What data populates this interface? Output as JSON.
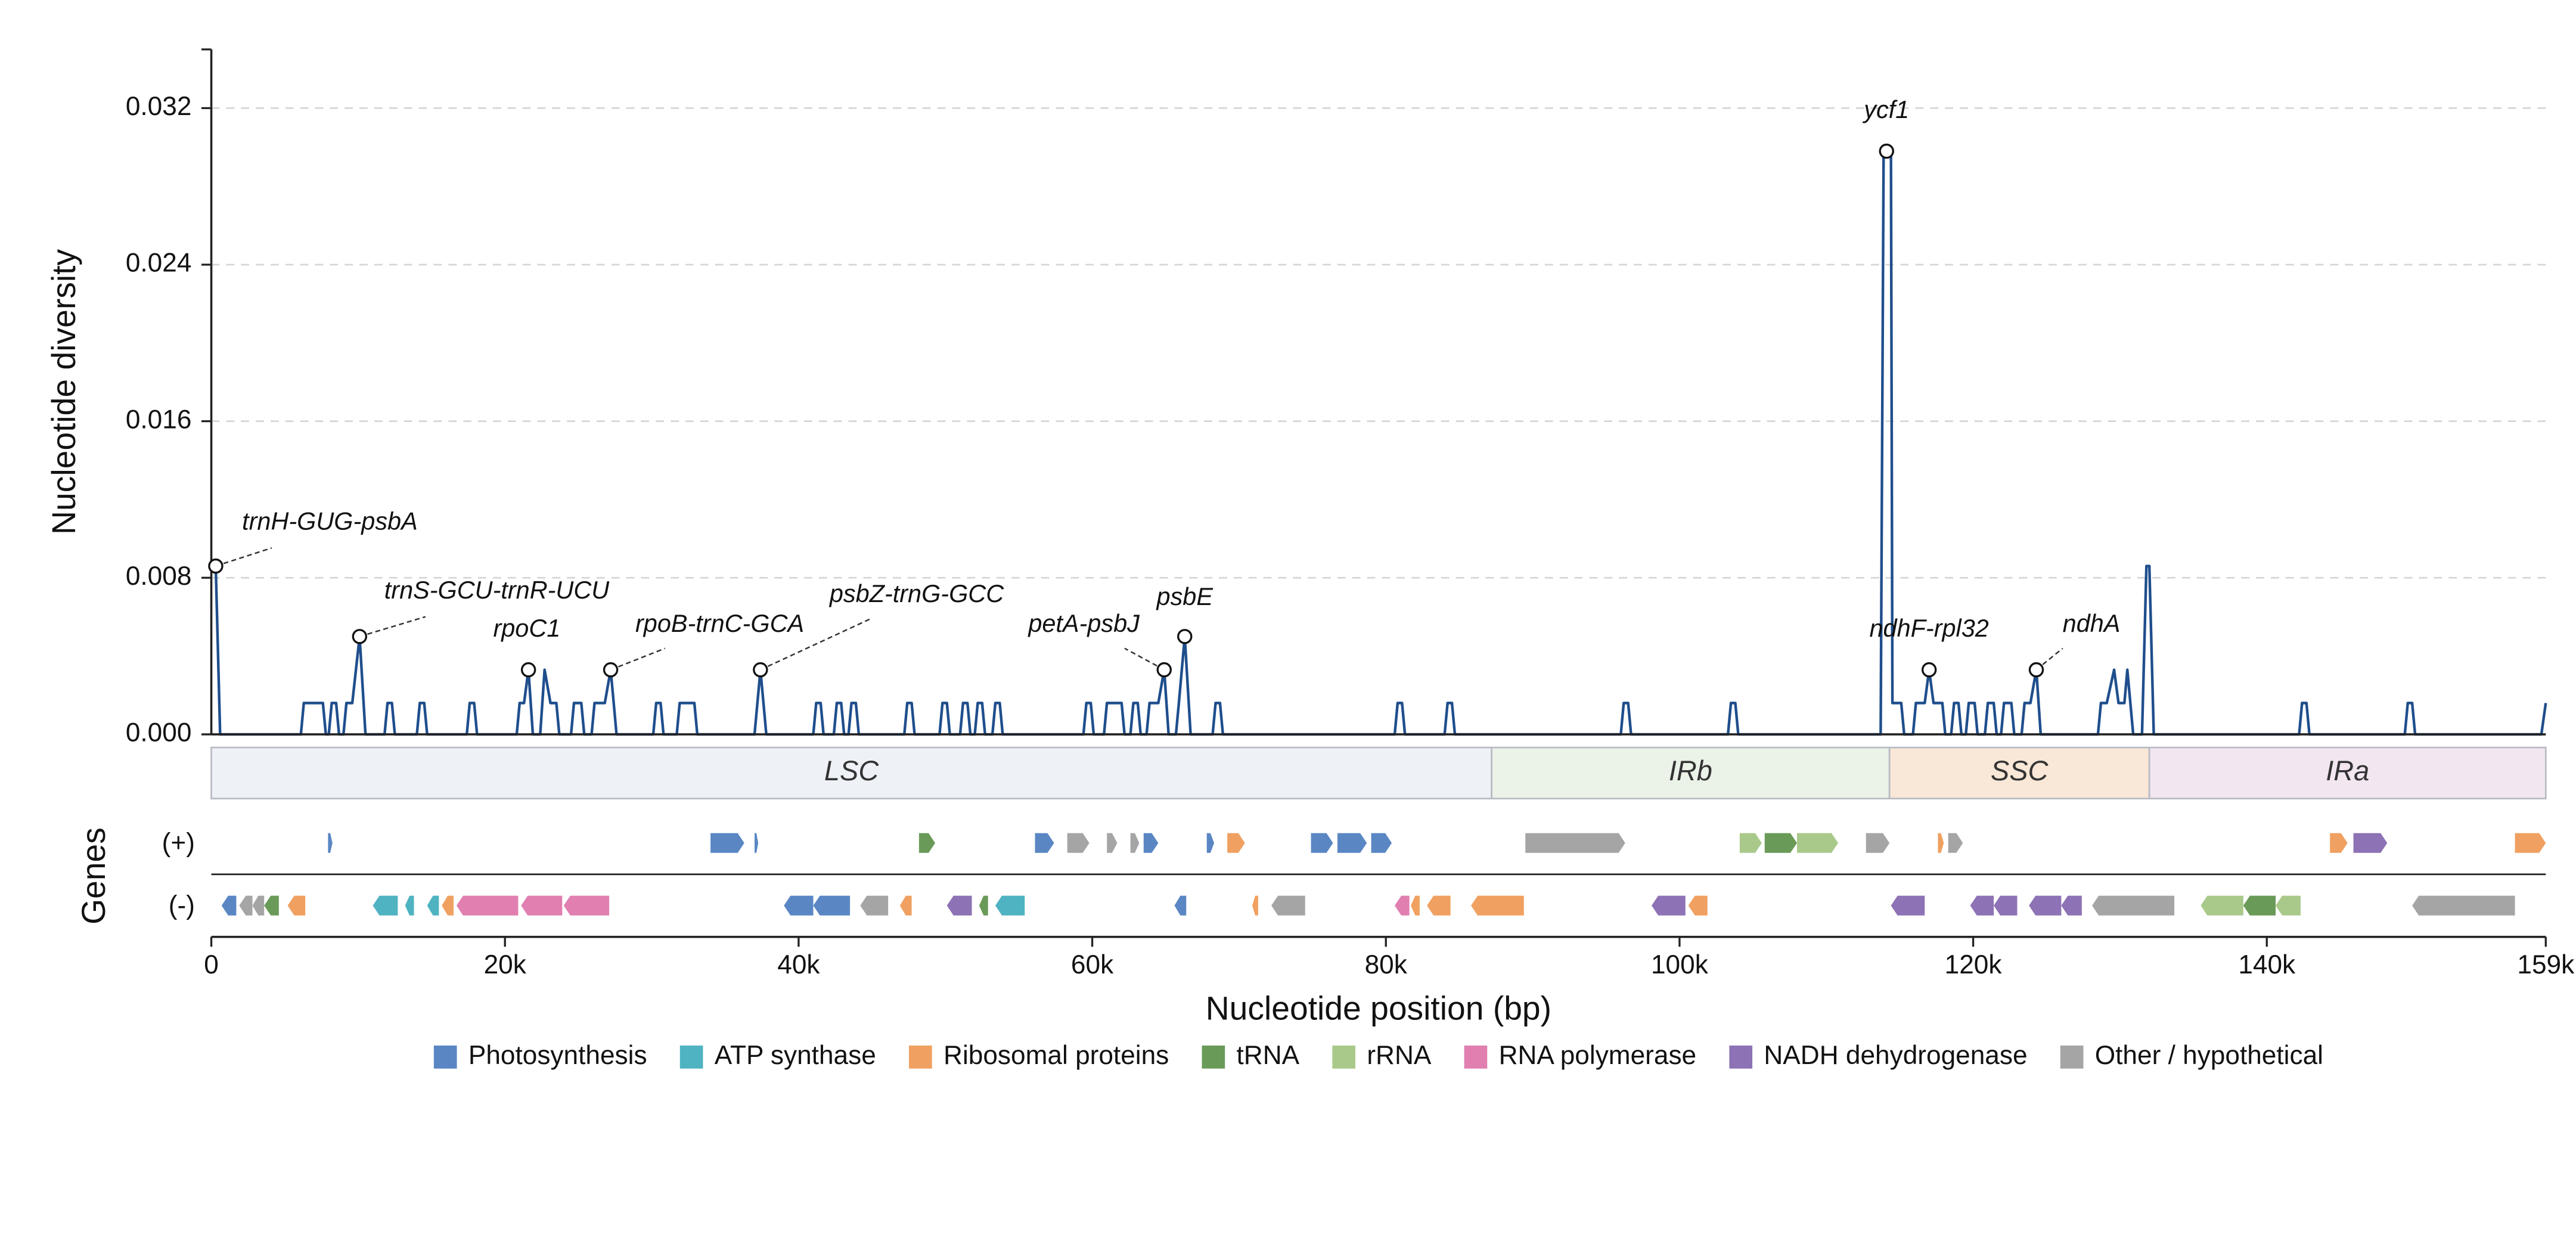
{
  "chart_data": {
    "type": "line",
    "ylabel": "Nucleotide diversity",
    "xlabel": "Nucleotide position (bp)",
    "track_label": "Genes",
    "strand_labels": {
      "plus": "(+)",
      "minus": "(-)"
    },
    "color": "#1f4e8c",
    "grid": true,
    "xlim": [
      0,
      159000
    ],
    "ylim": [
      0,
      0.035
    ],
    "xticks": [
      0,
      {
        "value": 20000,
        "label": "20k"
      },
      {
        "value": 40000,
        "label": "40k"
      },
      {
        "value": 60000,
        "label": "60k"
      },
      {
        "value": 80000,
        "label": "80k"
      },
      {
        "value": 100000,
        "label": "100k"
      },
      {
        "value": 120000,
        "label": "120k"
      },
      {
        "value": 140000,
        "label": "140k"
      },
      {
        "value": 159000,
        "label": "159k"
      }
    ],
    "yticks": [
      {
        "value": 0,
        "label": "0.000"
      },
      0.008,
      0.016,
      0.024,
      0.032
    ],
    "x": [
      0,
      300,
      600,
      6100,
      6300,
      7600,
      7800,
      8000,
      8200,
      8500,
      8700,
      9000,
      9200,
      9600,
      10100,
      10500,
      11800,
      12000,
      12300,
      12500,
      14000,
      14200,
      14500,
      14700,
      17400,
      17600,
      17900,
      18100,
      20800,
      21000,
      21300,
      21600,
      21900,
      22400,
      22700,
      23100,
      23500,
      23700,
      24500,
      24700,
      25200,
      25400,
      25900,
      26100,
      26800,
      27200,
      27600,
      30100,
      30300,
      30600,
      30800,
      31700,
      31900,
      32900,
      33100,
      37000,
      37400,
      37800,
      41000,
      41200,
      41500,
      41700,
      42400,
      42600,
      42900,
      43100,
      43400,
      43600,
      43900,
      44100,
      47200,
      47400,
      47700,
      47900,
      49600,
      49800,
      50100,
      50300,
      51000,
      51200,
      51500,
      51700,
      52000,
      52200,
      52500,
      52700,
      53200,
      53400,
      53700,
      53900,
      59400,
      59600,
      59900,
      60100,
      60800,
      61000,
      62000,
      62200,
      62600,
      62800,
      63100,
      63300,
      63700,
      63900,
      64500,
      64900,
      65200,
      65700,
      65900,
      66300,
      66700,
      68200,
      68400,
      68700,
      68900,
      80600,
      80800,
      81100,
      81300,
      84000,
      84200,
      84500,
      84700,
      96000,
      96200,
      96500,
      96700,
      103300,
      103500,
      103800,
      104000,
      113700,
      113900,
      114100,
      114400,
      114500,
      115100,
      115300,
      115900,
      116100,
      116700,
      117000,
      117300,
      117900,
      118100,
      118500,
      118700,
      119000,
      119200,
      119500,
      119700,
      120100,
      120300,
      120800,
      121000,
      121400,
      121600,
      121900,
      122100,
      122600,
      122800,
      123300,
      123500,
      123900,
      124300,
      124600,
      128500,
      128700,
      129100,
      129600,
      129900,
      130300,
      130500,
      130900,
      131500,
      131800,
      132000,
      132300,
      142200,
      142400,
      142700,
      142900,
      149400,
      149600,
      149900,
      150100,
      158700,
      159000
    ],
    "values": [
      0.0086,
      0.0086,
      0,
      0,
      0.0016,
      0.0016,
      0,
      0,
      0.0016,
      0.0016,
      0,
      0,
      0.0016,
      0.0016,
      0.005,
      0,
      0,
      0.0016,
      0.0016,
      0,
      0,
      0.0016,
      0.0016,
      0,
      0,
      0.0016,
      0.0016,
      0,
      0,
      0.0016,
      0.0016,
      0.0033,
      0,
      0,
      0.0033,
      0.0016,
      0.0016,
      0,
      0,
      0.0016,
      0.0016,
      0,
      0,
      0.0016,
      0.0016,
      0.0033,
      0,
      0,
      0.0016,
      0.0016,
      0,
      0,
      0.0016,
      0.0016,
      0,
      0,
      0.0033,
      0,
      0,
      0.0016,
      0.0016,
      0,
      0,
      0.0016,
      0.0016,
      0,
      0,
      0.0016,
      0.0016,
      0,
      0,
      0.0016,
      0.0016,
      0,
      0,
      0.0016,
      0.0016,
      0,
      0,
      0.0016,
      0.0016,
      0,
      0,
      0.0016,
      0.0016,
      0,
      0,
      0.0016,
      0.0016,
      0,
      0,
      0.0016,
      0.0016,
      0,
      0,
      0.0016,
      0.0016,
      0,
      0,
      0.0016,
      0.0016,
      0,
      0,
      0.0016,
      0.0016,
      0.0033,
      0,
      0,
      0.0016,
      0.005,
      0,
      0,
      0.0016,
      0.0016,
      0,
      0,
      0.0016,
      0.0016,
      0,
      0,
      0.0016,
      0.0016,
      0,
      0,
      0.0016,
      0.0016,
      0,
      0,
      0.0016,
      0.0016,
      0,
      0,
      0.0298,
      0.0298,
      0.0298,
      0.0016,
      0.0016,
      0,
      0,
      0.0016,
      0.0016,
      0.0033,
      0.0016,
      0.0016,
      0,
      0,
      0.0016,
      0.0016,
      0,
      0,
      0.0016,
      0.0016,
      0,
      0,
      0.0016,
      0.0016,
      0,
      0,
      0.0016,
      0.0016,
      0,
      0,
      0.0016,
      0.0016,
      0.0033,
      0,
      0,
      0.0016,
      0.0016,
      0.0033,
      0.0016,
      0.0016,
      0.0033,
      0,
      0,
      0.0086,
      0.0086,
      0,
      0,
      0.0016,
      0.0016,
      0,
      0,
      0.0016,
      0.0016,
      0,
      0,
      0.0016
    ],
    "annotations": [
      {
        "label": "trnH-GUG-psbA",
        "x": 300,
        "value": 0.0086
      },
      {
        "label": "trnS-GCU-trnR-UCU",
        "x": 10100,
        "value": 0.005
      },
      {
        "label": "rpoC1",
        "x": 21600,
        "value": 0.0033
      },
      {
        "label": "rpoB-trnC-GCA",
        "x": 27200,
        "value": 0.0033
      },
      {
        "label": "psbZ-trnG-GCC",
        "x": 37400,
        "value": 0.0033
      },
      {
        "label": "petA-psbJ",
        "x": 64900,
        "value": 0.0033
      },
      {
        "label": "psbE",
        "x": 66300,
        "value": 0.005
      },
      {
        "label": "ycf1",
        "x": 114100,
        "value": 0.0298
      },
      {
        "label": "ndhF-rpl32",
        "x": 117000,
        "value": 0.0033
      },
      {
        "label": "ndhA",
        "x": 124300,
        "value": 0.0033
      }
    ],
    "regions": [
      {
        "name": "LSC",
        "start": 0,
        "end": 87200,
        "color": "#eef2f6"
      },
      {
        "name": "IRb",
        "start": 87200,
        "end": 114300,
        "color": "#ebf2e8"
      },
      {
        "name": "SSC",
        "start": 114300,
        "end": 132000,
        "color": "#f9e7d7"
      },
      {
        "name": "IRa",
        "start": 132000,
        "end": 159000,
        "color": "#f2e6f1"
      }
    ],
    "gene_categories": [
      {
        "name": "Photosynthesis",
        "color": "#5a87c4"
      },
      {
        "name": "ATP synthase",
        "color": "#4fb3c1"
      },
      {
        "name": "Ribosomal proteins",
        "color": "#f0a060"
      },
      {
        "name": "tRNA",
        "color": "#6a9a58"
      },
      {
        "name": "rRNA",
        "color": "#a9c98a"
      },
      {
        "name": "RNA polymerase",
        "color": "#e07fb0"
      },
      {
        "name": "NADH dehydrogenase",
        "color": "#8d72b5"
      },
      {
        "name": "Other / hypothetical",
        "color": "#a5a5a5"
      }
    ],
    "genes": {
      "plus": [
        {
          "start": 7950,
          "end": 8250,
          "category": "Photosynthesis"
        },
        {
          "start": 34000,
          "end": 36300,
          "category": "Photosynthesis"
        },
        {
          "start": 37000,
          "end": 37250,
          "category": "Photosynthesis"
        },
        {
          "start": 48200,
          "end": 49300,
          "category": "tRNA"
        },
        {
          "start": 56100,
          "end": 57400,
          "category": "Photosynthesis"
        },
        {
          "start": 58300,
          "end": 59800,
          "category": "Other / hypothetical"
        },
        {
          "start": 61000,
          "end": 61700,
          "category": "Other / hypothetical"
        },
        {
          "start": 62600,
          "end": 63200,
          "category": "Other / hypothetical"
        },
        {
          "start": 63500,
          "end": 64500,
          "category": "Photosynthesis"
        },
        {
          "start": 67800,
          "end": 68300,
          "category": "Photosynthesis"
        },
        {
          "start": 69200,
          "end": 70400,
          "category": "Ribosomal proteins"
        },
        {
          "start": 74900,
          "end": 76400,
          "category": "Photosynthesis"
        },
        {
          "start": 76700,
          "end": 78700,
          "category": "Photosynthesis"
        },
        {
          "start": 79000,
          "end": 80400,
          "category": "Photosynthesis"
        },
        {
          "start": 89500,
          "end": 96300,
          "category": "Other / hypothetical"
        },
        {
          "start": 104100,
          "end": 105600,
          "category": "rRNA"
        },
        {
          "start": 105800,
          "end": 108000,
          "category": "tRNA"
        },
        {
          "start": 108000,
          "end": 110800,
          "category": "rRNA"
        },
        {
          "start": 112700,
          "end": 114300,
          "category": "Other / hypothetical"
        },
        {
          "start": 117600,
          "end": 118000,
          "category": "Ribosomal proteins"
        },
        {
          "start": 118300,
          "end": 119300,
          "category": "Other / hypothetical"
        },
        {
          "start": 144300,
          "end": 145500,
          "category": "Ribosomal proteins"
        },
        {
          "start": 145900,
          "end": 148200,
          "category": "NADH dehydrogenase"
        },
        {
          "start": 156900,
          "end": 159000,
          "category": "Ribosomal proteins"
        }
      ],
      "minus": [
        {
          "start": 700,
          "end": 1700,
          "category": "Photosynthesis"
        },
        {
          "start": 1900,
          "end": 2800,
          "category": "Other / hypothetical"
        },
        {
          "start": 2800,
          "end": 3600,
          "category": "Other / hypothetical"
        },
        {
          "start": 3600,
          "end": 4600,
          "category": "tRNA"
        },
        {
          "start": 5200,
          "end": 6400,
          "category": "Ribosomal proteins"
        },
        {
          "start": 11000,
          "end": 12700,
          "category": "ATP synthase"
        },
        {
          "start": 13200,
          "end": 13800,
          "category": "ATP synthase"
        },
        {
          "start": 14700,
          "end": 15500,
          "category": "ATP synthase"
        },
        {
          "start": 15700,
          "end": 16500,
          "category": "Ribosomal proteins"
        },
        {
          "start": 16700,
          "end": 20900,
          "category": "RNA polymerase"
        },
        {
          "start": 21100,
          "end": 23900,
          "category": "RNA polymerase"
        },
        {
          "start": 24000,
          "end": 27100,
          "category": "RNA polymerase"
        },
        {
          "start": 39000,
          "end": 41000,
          "category": "Photosynthesis"
        },
        {
          "start": 41000,
          "end": 43500,
          "category": "Photosynthesis"
        },
        {
          "start": 44200,
          "end": 46100,
          "category": "Other / hypothetical"
        },
        {
          "start": 46900,
          "end": 47700,
          "category": "Ribosomal proteins"
        },
        {
          "start": 50100,
          "end": 51800,
          "category": "NADH dehydrogenase"
        },
        {
          "start": 52300,
          "end": 52900,
          "category": "tRNA"
        },
        {
          "start": 53400,
          "end": 55400,
          "category": "ATP synthase"
        },
        {
          "start": 65600,
          "end": 66400,
          "category": "Photosynthesis"
        },
        {
          "start": 70900,
          "end": 71300,
          "category": "Ribosomal proteins"
        },
        {
          "start": 72200,
          "end": 74500,
          "category": "Other / hypothetical"
        },
        {
          "start": 80600,
          "end": 81600,
          "category": "RNA polymerase"
        },
        {
          "start": 81700,
          "end": 82300,
          "category": "Ribosomal proteins"
        },
        {
          "start": 82800,
          "end": 84400,
          "category": "Ribosomal proteins"
        },
        {
          "start": 85800,
          "end": 89400,
          "category": "Ribosomal proteins"
        },
        {
          "start": 98100,
          "end": 100400,
          "category": "NADH dehydrogenase"
        },
        {
          "start": 100600,
          "end": 101900,
          "category": "Ribosomal proteins"
        },
        {
          "start": 114400,
          "end": 116700,
          "category": "NADH dehydrogenase"
        },
        {
          "start": 119800,
          "end": 121400,
          "category": "NADH dehydrogenase"
        },
        {
          "start": 121400,
          "end": 123000,
          "category": "NADH dehydrogenase"
        },
        {
          "start": 123800,
          "end": 126000,
          "category": "NADH dehydrogenase"
        },
        {
          "start": 126000,
          "end": 127400,
          "category": "NADH dehydrogenase"
        },
        {
          "start": 128100,
          "end": 133700,
          "category": "Other / hypothetical"
        },
        {
          "start": 135500,
          "end": 138400,
          "category": "rRNA"
        },
        {
          "start": 138400,
          "end": 140600,
          "category": "tRNA"
        },
        {
          "start": 140600,
          "end": 142300,
          "category": "rRNA"
        },
        {
          "start": 149900,
          "end": 156900,
          "category": "Other / hypothetical"
        }
      ]
    }
  }
}
